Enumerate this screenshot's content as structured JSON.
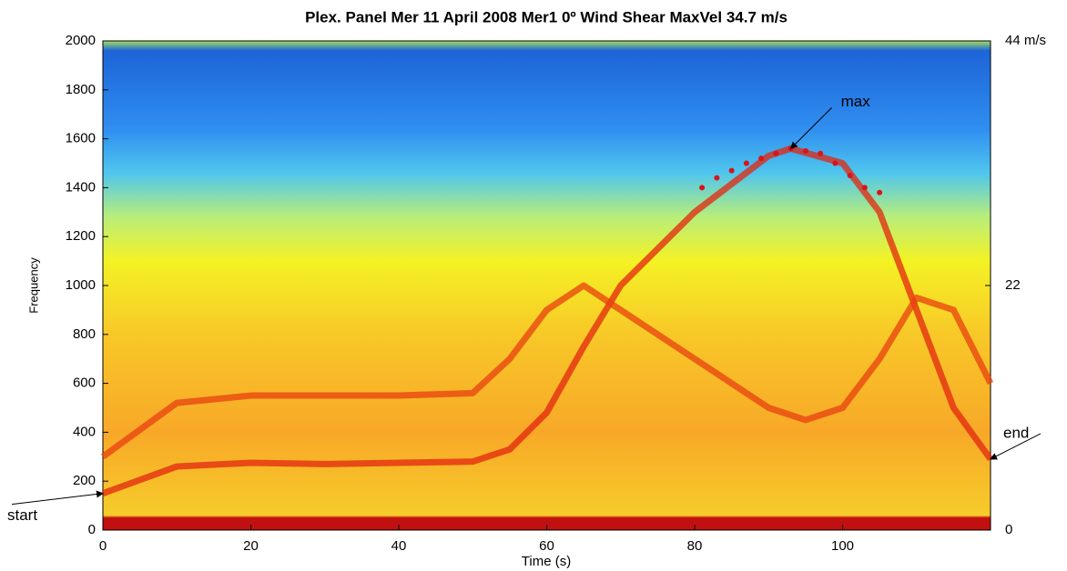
{
  "chart_data": {
    "type": "spectrogram",
    "title": "Plex. Panel Mer 11 April 2008 Mer1 0º Wind Shear MaxVel 34.7 m/s",
    "xlabel": "Time  (s)",
    "ylabel": "Frequency",
    "xlim": [
      0,
      120
    ],
    "xticks": [
      0,
      20,
      40,
      60,
      80,
      100
    ],
    "ylim": [
      0,
      2000
    ],
    "yticks": [
      0,
      200,
      400,
      600,
      800,
      1000,
      1200,
      1400,
      1600,
      1800,
      2000
    ],
    "y2lim": [
      0,
      44
    ],
    "y2ticks": [
      0,
      22,
      {
        "value": 44,
        "label": "44 m/s"
      }
    ],
    "series": [
      {
        "mode": "line",
        "color": "#e3260f",
        "x": [
          0,
          10,
          20,
          30,
          40,
          50,
          55,
          60,
          65,
          70,
          80,
          90,
          93,
          100,
          105,
          110,
          115,
          120
        ],
        "values": [
          150,
          260,
          275,
          270,
          275,
          280,
          330,
          480,
          750,
          1000,
          1300,
          1530,
          1560,
          1500,
          1300,
          900,
          500,
          290
        ]
      },
      {
        "mode": "line",
        "color": "#e8400f",
        "x": [
          0,
          10,
          20,
          30,
          40,
          50,
          55,
          60,
          65,
          70,
          80,
          90,
          95,
          100,
          105,
          110,
          115,
          120
        ],
        "values": [
          300,
          520,
          550,
          550,
          550,
          560,
          700,
          900,
          1000,
          900,
          700,
          500,
          450,
          500,
          700,
          950,
          900,
          600
        ]
      },
      {
        "mode": "markers",
        "color": "#d8141a",
        "x": [
          81,
          83,
          85,
          87,
          89,
          91,
          93,
          95,
          97,
          99,
          101,
          103,
          105
        ],
        "values": [
          1400,
          1440,
          1470,
          1500,
          1520,
          1540,
          1560,
          1550,
          1540,
          1500,
          1450,
          1400,
          1380
        ]
      }
    ],
    "annotations": [
      {
        "text": "start",
        "x": 0,
        "y": 150
      },
      {
        "text": "end",
        "x": 120,
        "y": 290
      },
      {
        "text": "max",
        "x": 93,
        "y": 1560
      }
    ]
  }
}
